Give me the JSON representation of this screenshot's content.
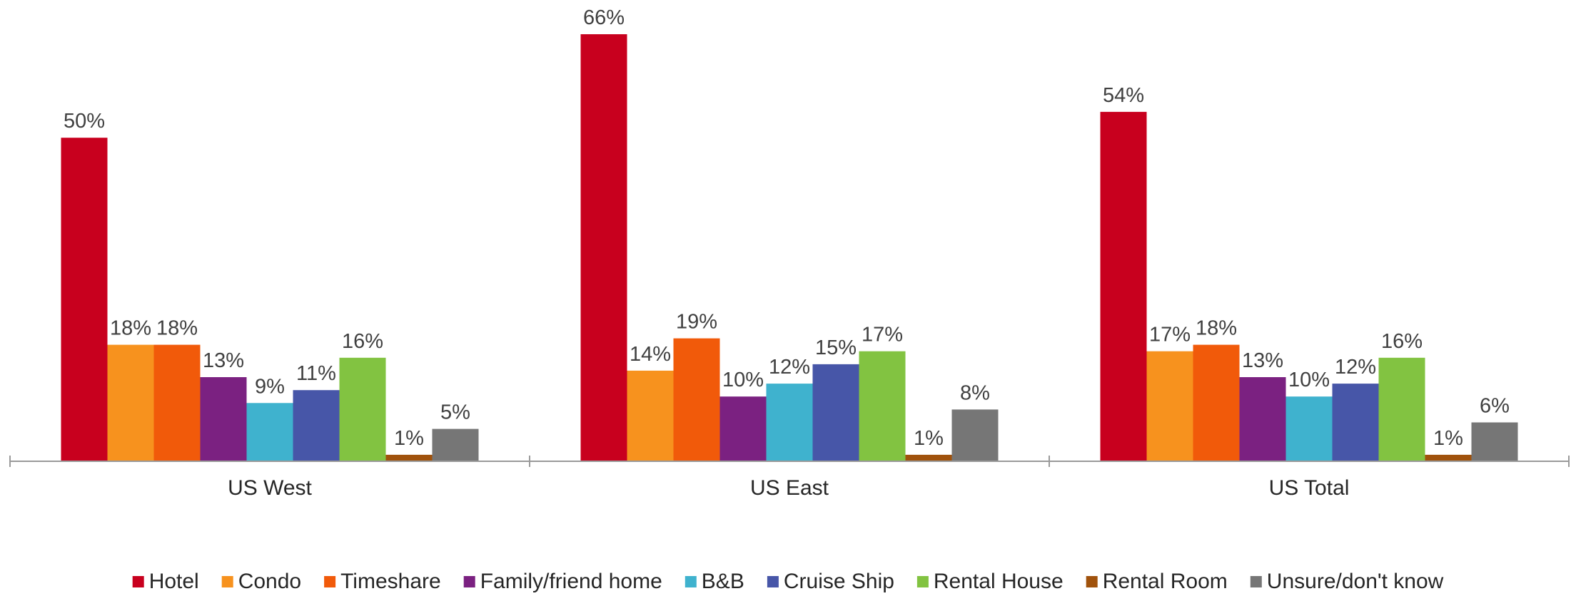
{
  "chart_data": {
    "type": "bar",
    "categories": [
      "US West",
      "US East",
      "US Total"
    ],
    "ylim": [
      0,
      66
    ],
    "grid": false,
    "legend_position": "bottom",
    "series": [
      {
        "name": "Hotel",
        "color": "#C8001E",
        "values": [
          50,
          66,
          54
        ],
        "labels": [
          "50%",
          "66%",
          "54%"
        ]
      },
      {
        "name": "Condo",
        "color": "#F7921E",
        "values": [
          18,
          14,
          17
        ],
        "labels": [
          "18%",
          "14%",
          "17%"
        ]
      },
      {
        "name": "Timeshare",
        "color": "#F15A0A",
        "values": [
          18,
          19,
          18
        ],
        "labels": [
          "18%",
          "19%",
          "18%"
        ]
      },
      {
        "name": "Family/friend home",
        "color": "#7B2181",
        "values": [
          13,
          10,
          13
        ],
        "labels": [
          "13%",
          "10%",
          "13%"
        ]
      },
      {
        "name": "B&B",
        "color": "#3FB2CE",
        "values": [
          9,
          12,
          10
        ],
        "labels": [
          "9%",
          "12%",
          "10%"
        ]
      },
      {
        "name": "Cruise Ship",
        "color": "#4756A8",
        "values": [
          11,
          15,
          12
        ],
        "labels": [
          "11%",
          "15%",
          "12%"
        ]
      },
      {
        "name": "Rental House",
        "color": "#82C341",
        "values": [
          16,
          17,
          16
        ],
        "labels": [
          "16%",
          "17%",
          "16%"
        ]
      },
      {
        "name": "Rental Room",
        "color": "#A0520C",
        "values": [
          1,
          1,
          1
        ],
        "labels": [
          "1%",
          "1%",
          "1%"
        ]
      },
      {
        "name": "Unsure/don't know",
        "color": "#767676",
        "values": [
          5,
          8,
          6
        ],
        "labels": [
          "5%",
          "8%",
          "6%"
        ]
      }
    ]
  }
}
